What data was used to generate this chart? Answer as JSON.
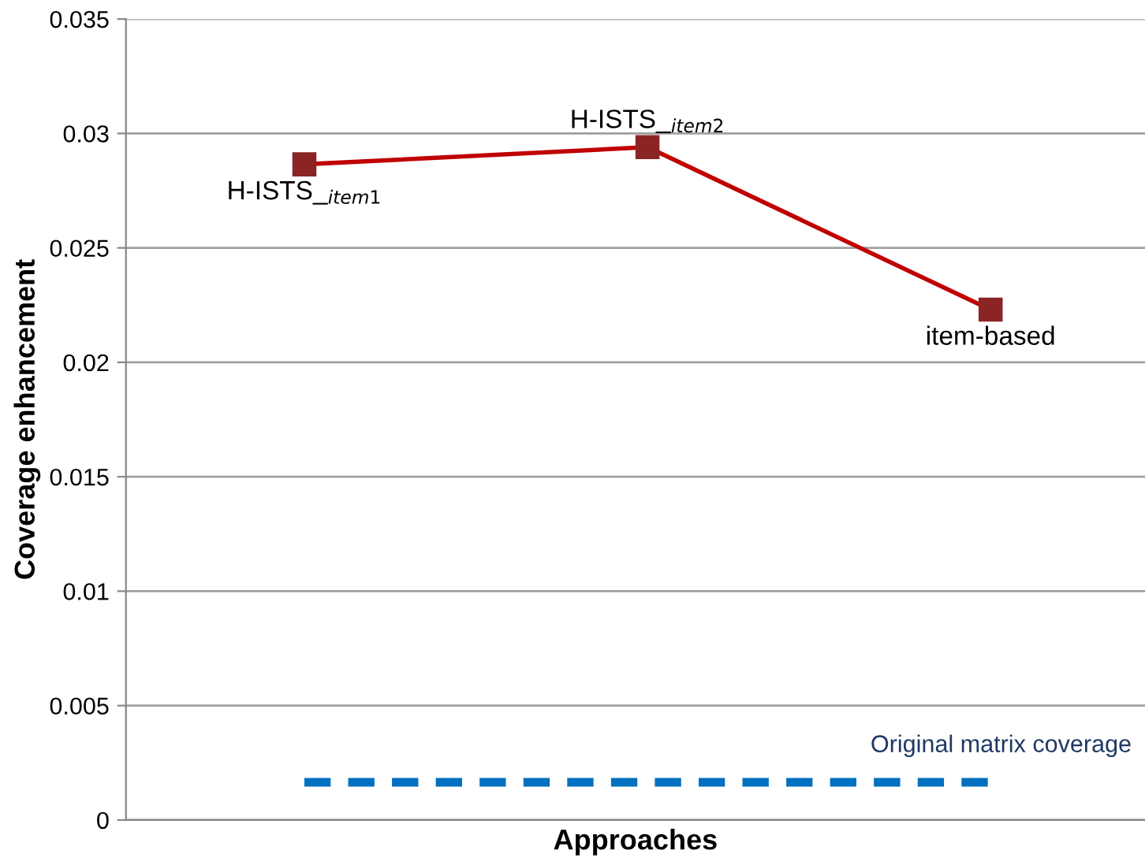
{
  "chart_data": {
    "type": "line",
    "xlabel": "Approaches",
    "ylabel": "Coverage enhancement",
    "categories": [
      null,
      null,
      null
    ],
    "series": [
      {
        "color": "#c00000",
        "values": [
          0.02865,
          0.0294,
          0.0223
        ],
        "marker": "square",
        "line_style": "solid"
      },
      {
        "name": "Original matrix coverage",
        "color": "#0070c0",
        "values": [
          0.00165,
          0.00165,
          0.00165
        ],
        "marker": "none",
        "line_style": "dashed"
      }
    ],
    "annotations": [
      {
        "text": "H-ISTS_$_{item1}$",
        "y": 0.02865
      },
      {
        "text": "H-ISTS_$_{item2}$",
        "y": 0.0294
      },
      {
        "text": "item-based",
        "y": 0.0223
      }
    ],
    "ylim": [
      0,
      0.035
    ],
    "yticks": [
      0,
      0.005,
      0.01,
      0.015,
      0.02,
      0.025,
      0.03,
      0.035
    ],
    "grid": "y",
    "legend": false,
    "tick_labels": "y"
  }
}
